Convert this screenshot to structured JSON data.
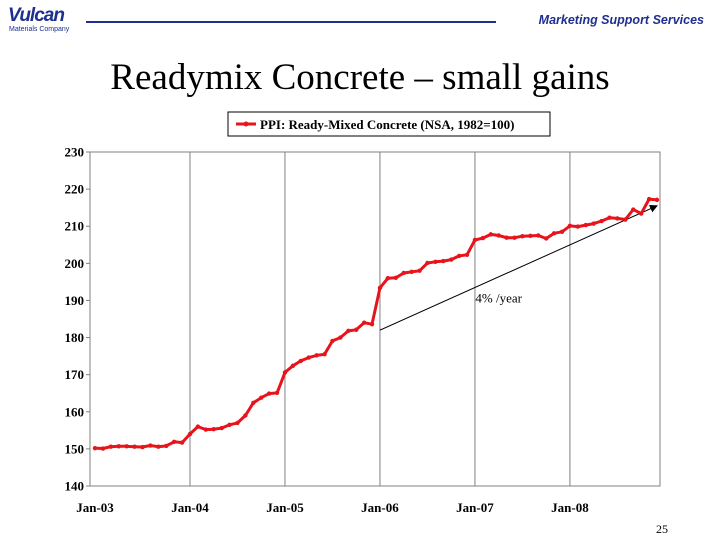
{
  "header": {
    "logo_word": "Vulcan",
    "logo_sub": "Materials Company",
    "dept": "Marketing Support Services"
  },
  "slide": {
    "title": "Readymix Concrete – small gains",
    "page_number": "25"
  },
  "colors": {
    "brand": "#1e2f8f",
    "series": "#e8141c"
  },
  "chart_data": {
    "type": "line",
    "legend_position": "top",
    "series": [
      {
        "name": "PPI: Ready-Mixed Concrete (NSA, 1982=100)",
        "values": [
          150.2,
          150.1,
          150.6,
          150.7,
          150.7,
          150.6,
          150.5,
          150.9,
          150.6,
          150.8,
          151.9,
          151.7,
          154.0,
          156.0,
          155.2,
          155.3,
          155.6,
          156.5,
          157.0,
          159.0,
          162.4,
          163.8,
          164.9,
          165.1,
          170.6,
          172.4,
          173.7,
          174.6,
          175.2,
          175.5,
          179.1,
          180.0,
          181.8,
          182.1,
          184.0,
          183.6,
          193.4,
          196.0,
          196.1,
          197.4,
          197.7,
          198.0,
          200.1,
          200.4,
          200.6,
          201.0,
          202.0,
          202.3,
          206.3,
          206.8,
          207.8,
          207.5,
          206.9,
          206.9,
          207.3,
          207.4,
          207.5,
          206.7,
          208.1,
          208.5,
          210.1,
          209.9,
          210.3,
          210.7,
          211.4,
          212.3,
          212.1,
          211.8,
          214.5,
          213.4,
          217.3,
          217.1
        ]
      }
    ],
    "x_start_label": "Jan-03",
    "x_ticks": [
      "Jan-03",
      "Jan-04",
      "Jan-05",
      "Jan-06",
      "Jan-07",
      "Jan-08"
    ],
    "y_ticks": [
      140,
      150,
      160,
      170,
      180,
      190,
      200,
      210,
      220,
      230
    ],
    "ylim": [
      140,
      230
    ],
    "grid": "vertical",
    "annotation": {
      "text": "4% /year",
      "from": [
        36,
        182
      ],
      "to": [
        71,
        215.5
      ]
    }
  }
}
